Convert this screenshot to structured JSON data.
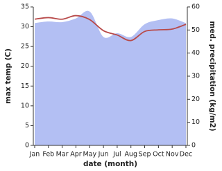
{
  "chart_data": {
    "type": "line-area",
    "categories": [
      "Jan",
      "Feb",
      "Mar",
      "Apr",
      "May",
      "Jun",
      "Jul",
      "Aug",
      "Sep",
      "Oct",
      "Nov",
      "Dec"
    ],
    "x_label": "date (month)",
    "y_label": "max temp (C)",
    "y2_label": "med. precipitation (kg/m2)",
    "ylim": [
      0,
      35
    ],
    "yticks": [
      0,
      5,
      10,
      15,
      20,
      25,
      30,
      35
    ],
    "y2lim": [
      0,
      60
    ],
    "y2ticks": [
      0,
      10,
      20,
      30,
      40,
      50,
      60
    ],
    "series": [
      {
        "kind": "line",
        "color": "#b84a4a",
        "axis": "y",
        "values": [
          31.9,
          32.3,
          31.9,
          32.8,
          31.8,
          29.0,
          27.9,
          26.5,
          28.8,
          29.2,
          29.4,
          30.6
        ]
      },
      {
        "kind": "area",
        "color": "#b3bff3",
        "axis": "y2",
        "values": [
          53,
          53.7,
          53.4,
          55,
          58,
          47,
          48.6,
          47,
          52.5,
          54.3,
          55,
          53
        ]
      }
    ]
  }
}
